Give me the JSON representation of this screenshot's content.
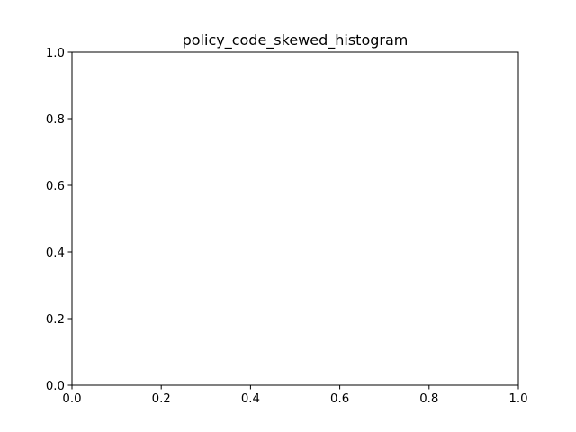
{
  "chart_data": {
    "type": "bar",
    "title": "policy_code_skewed_histogram",
    "xlabel": "",
    "ylabel": "",
    "xlim": [
      0.0,
      1.0
    ],
    "ylim": [
      0.0,
      1.0
    ],
    "x_ticks": [
      "0.0",
      "0.2",
      "0.4",
      "0.6",
      "0.8",
      "1.0"
    ],
    "y_ticks": [
      "0.0",
      "0.2",
      "0.4",
      "0.6",
      "0.8",
      "1.0"
    ],
    "categories": [],
    "values": [],
    "grid": false,
    "legend": "none",
    "colors": {
      "axes": "#000000",
      "background": "#ffffff"
    }
  }
}
